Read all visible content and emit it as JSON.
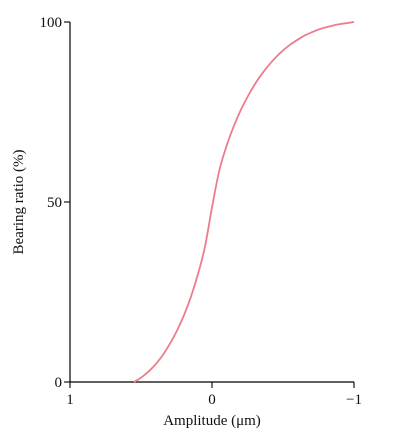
{
  "chart_data": {
    "type": "line",
    "title": "",
    "xlabel": "Amplitude (μm)",
    "ylabel": "Bearing ratio (%)",
    "xlim": [
      1,
      -1
    ],
    "ylim": [
      0,
      100
    ],
    "x_ticks": [
      1,
      0,
      -1
    ],
    "x_tick_labels": [
      "1",
      "0",
      "−1"
    ],
    "y_ticks": [
      0,
      50,
      100
    ],
    "y_tick_labels": [
      "0",
      "50",
      "100"
    ],
    "grid": false,
    "series": [
      {
        "color": "#ec7d8c",
        "x": [
          0.55,
          0.5,
          0.45,
          0.4,
          0.35,
          0.3,
          0.25,
          0.2,
          0.15,
          0.1,
          0.05,
          0.0,
          -0.05,
          -0.1,
          -0.15,
          -0.2,
          -0.25,
          -0.3,
          -0.35,
          -0.4,
          -0.45,
          -0.5,
          -0.55,
          -0.6,
          -0.65,
          -0.7,
          -0.75,
          -0.8,
          -0.85,
          -0.9,
          -0.95,
          -1.0
        ],
        "y": [
          0,
          1.2,
          2.8,
          4.8,
          7.3,
          10.4,
          14.0,
          18.3,
          23.5,
          29.8,
          37.5,
          48.5,
          58.5,
          65.3,
          70.7,
          75.3,
          79.2,
          82.6,
          85.5,
          88.0,
          90.2,
          92.1,
          93.7,
          95.0,
          96.2,
          97.1,
          97.9,
          98.5,
          99.0,
          99.4,
          99.7,
          100
        ]
      }
    ]
  }
}
